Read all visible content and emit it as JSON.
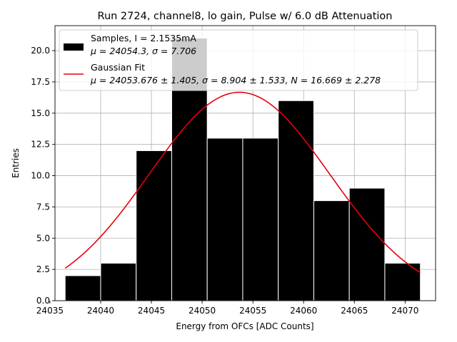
{
  "chart_data": {
    "type": "bar",
    "title": "Run 2724, channel8, lo gain, Pulse w/ 6.0 dB Attenuation",
    "xlabel": "Energy from OFCs [ADC Counts]",
    "ylabel": "Entries",
    "xlim": [
      24035.5,
      24073.0
    ],
    "ylim": [
      0,
      22.0
    ],
    "grid": true,
    "legend_position": "top-left",
    "x_ticks": [
      {
        "value": 24035,
        "label": "24035"
      },
      {
        "value": 24040,
        "label": "24040"
      },
      {
        "value": 24045,
        "label": "24045"
      },
      {
        "value": 24050,
        "label": "24050"
      },
      {
        "value": 24055,
        "label": "24055"
      },
      {
        "value": 24060,
        "label": "24060"
      },
      {
        "value": 24065,
        "label": "24065"
      },
      {
        "value": 24070,
        "label": "24070"
      }
    ],
    "y_ticks": [
      {
        "value": 0,
        "label": "0.0"
      },
      {
        "value": 2.5,
        "label": "2.5"
      },
      {
        "value": 5,
        "label": "5.0"
      },
      {
        "value": 7.5,
        "label": "7.5"
      },
      {
        "value": 10,
        "label": "10.0"
      },
      {
        "value": 12.5,
        "label": "12.5"
      },
      {
        "value": 15,
        "label": "15.0"
      },
      {
        "value": 17.5,
        "label": "17.5"
      },
      {
        "value": 20,
        "label": "20.0"
      }
    ],
    "histogram": {
      "name": "Samples, I = 2.1535mA",
      "stats": "μ = 24054.3, σ = 7.706",
      "color": "#000000",
      "edge_color": "#ffffff",
      "bins": [
        {
          "x0": 24036.5,
          "x1": 24040.0,
          "count": 2
        },
        {
          "x0": 24040.0,
          "x1": 24043.5,
          "count": 3
        },
        {
          "x0": 24043.5,
          "x1": 24047.0,
          "count": 12
        },
        {
          "x0": 24047.0,
          "x1": 24050.5,
          "count": 21
        },
        {
          "x0": 24050.5,
          "x1": 24054.0,
          "count": 13
        },
        {
          "x0": 24054.0,
          "x1": 24057.5,
          "count": 13
        },
        {
          "x0": 24057.5,
          "x1": 24061.0,
          "count": 16
        },
        {
          "x0": 24061.0,
          "x1": 24064.5,
          "count": 8
        },
        {
          "x0": 24064.5,
          "x1": 24068.0,
          "count": 9
        },
        {
          "x0": 24068.0,
          "x1": 24071.5,
          "count": 3
        }
      ]
    },
    "fit": {
      "name": "Gaussian Fit",
      "stats": "μ = 24053.676 ± 1.405, σ = 8.904 ± 1.533, N = 16.669 ± 2.278",
      "color": "#e8000b",
      "type": "gaussian",
      "mu": 24053.676,
      "sigma": 8.904,
      "amplitude": 16.669,
      "x_range": [
        24036.5,
        24071.5
      ]
    }
  }
}
